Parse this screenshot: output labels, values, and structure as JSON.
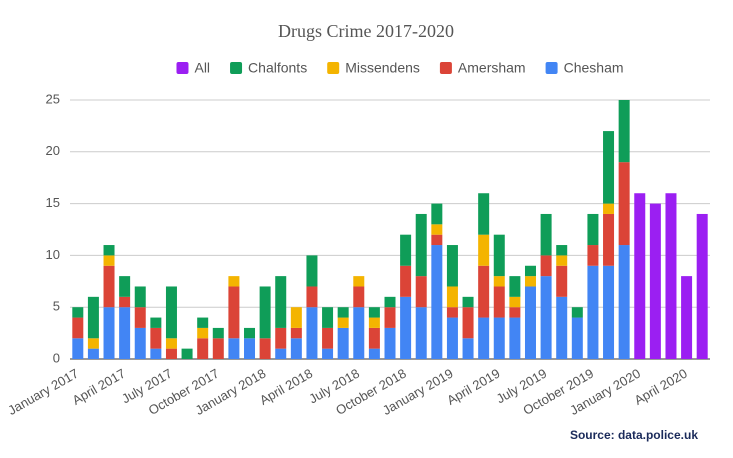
{
  "chart_data": {
    "type": "stacked-bar",
    "title": "Drugs Crime 2017-2020",
    "categories": [
      "January 2017",
      null,
      null,
      "April 2017",
      null,
      null,
      "July 2017",
      null,
      null,
      "October 2017",
      null,
      null,
      "January 2018",
      null,
      null,
      "April 2018",
      null,
      null,
      "July 2018",
      null,
      null,
      "October 2018",
      null,
      null,
      "January 2019",
      null,
      null,
      "April 2019",
      null,
      null,
      "July 2019",
      null,
      null,
      "October 2019",
      null,
      null,
      "January 2020",
      null,
      null,
      "April 2020",
      null
    ],
    "series": [
      {
        "name": "All",
        "color": "#9b1ff2",
        "values": [
          null,
          null,
          null,
          null,
          null,
          null,
          null,
          null,
          null,
          null,
          null,
          null,
          null,
          null,
          null,
          null,
          null,
          null,
          null,
          null,
          null,
          null,
          null,
          null,
          null,
          null,
          null,
          null,
          null,
          null,
          null,
          null,
          null,
          null,
          null,
          null,
          16,
          15,
          16,
          8,
          14
        ]
      },
      {
        "name": "Chalfonts",
        "color": "#0f9d58",
        "values": [
          1,
          4,
          1,
          2,
          2,
          1,
          5,
          1,
          1,
          1,
          0,
          1,
          5,
          5,
          0,
          3,
          2,
          1,
          0,
          1,
          1,
          3,
          6,
          2,
          4,
          1,
          4,
          4,
          2,
          1,
          4,
          1,
          1,
          3,
          7,
          6,
          null,
          null,
          null,
          null,
          null
        ]
      },
      {
        "name": "Missendens",
        "color": "#f4b400",
        "values": [
          0,
          1,
          1,
          0,
          0,
          0,
          1,
          0,
          1,
          0,
          1,
          0,
          0,
          0,
          2,
          0,
          0,
          1,
          1,
          1,
          0,
          0,
          0,
          1,
          2,
          0,
          3,
          1,
          1,
          1,
          0,
          1,
          0,
          0,
          1,
          0,
          null,
          null,
          null,
          null,
          null
        ]
      },
      {
        "name": "Amersham",
        "color": "#db4437",
        "values": [
          2,
          0,
          4,
          1,
          2,
          2,
          1,
          0,
          2,
          2,
          5,
          0,
          2,
          2,
          1,
          2,
          2,
          0,
          2,
          2,
          2,
          3,
          3,
          1,
          1,
          3,
          5,
          3,
          1,
          0,
          2,
          3,
          0,
          2,
          5,
          8,
          null,
          null,
          null,
          null,
          null
        ]
      },
      {
        "name": "Chesham",
        "color": "#4285f4",
        "values": [
          2,
          1,
          5,
          5,
          3,
          1,
          0,
          0,
          0,
          0,
          2,
          2,
          0,
          1,
          2,
          5,
          1,
          3,
          5,
          1,
          3,
          6,
          5,
          11,
          4,
          2,
          4,
          4,
          4,
          7,
          8,
          6,
          4,
          9,
          9,
          11,
          null,
          null,
          null,
          null,
          null
        ]
      }
    ],
    "ylim": [
      0,
      25
    ],
    "yticks": [
      0,
      5,
      10,
      15,
      20,
      25
    ],
    "grid": true,
    "source": "Source:  data.police.uk"
  }
}
